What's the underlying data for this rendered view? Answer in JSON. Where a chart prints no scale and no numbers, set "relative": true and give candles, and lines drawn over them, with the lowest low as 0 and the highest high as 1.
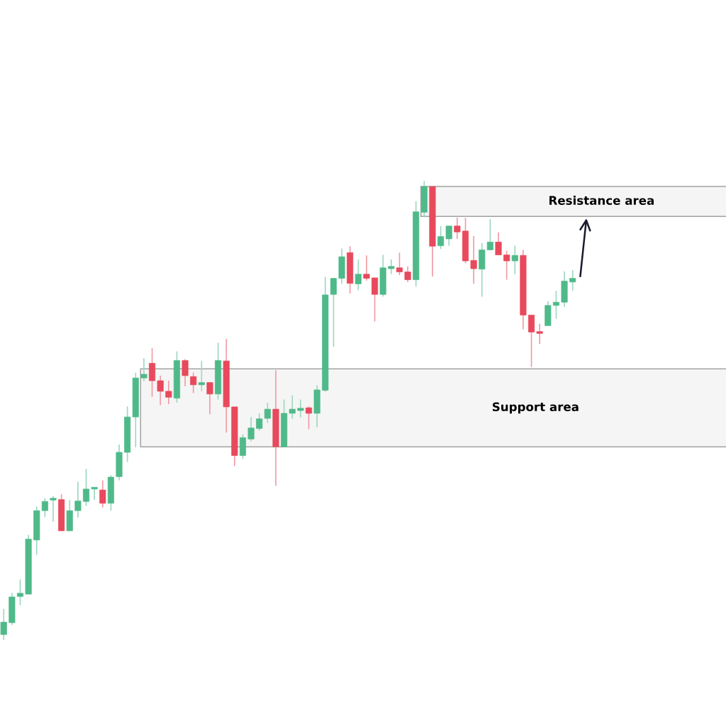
{
  "chart_data": {
    "type": "candlestick",
    "relative": true,
    "categories": [
      null,
      null,
      null,
      null,
      null,
      null,
      null,
      null,
      null,
      null,
      null,
      null,
      null,
      null,
      null,
      null,
      null,
      null,
      null,
      null,
      null,
      null,
      null,
      null,
      null,
      null,
      null,
      null,
      null,
      null,
      null,
      null,
      null,
      null,
      null,
      null,
      null,
      null,
      null,
      null,
      null,
      null,
      null,
      null,
      null,
      null,
      null,
      null,
      null,
      null,
      null,
      null,
      null,
      null,
      null,
      null,
      null,
      null,
      null,
      null,
      null,
      null,
      null,
      null,
      null,
      null,
      null,
      null,
      null,
      null
    ],
    "ohlc": [
      [
        0.012,
        0.068,
        0,
        0.039
      ],
      [
        0.038,
        0.103,
        0.033,
        0.094
      ],
      [
        0.095,
        0.132,
        0.076,
        0.102
      ],
      [
        0.1,
        0.229,
        0.1,
        0.22
      ],
      [
        0.218,
        0.291,
        0.186,
        0.282
      ],
      [
        0.282,
        0.309,
        0.268,
        0.302
      ],
      [
        0.305,
        0.314,
        0.258,
        0.306
      ],
      [
        0.306,
        0.318,
        0.238,
        0.238
      ],
      [
        0.238,
        0.305,
        0.238,
        0.282
      ],
      [
        0.282,
        0.345,
        0.267,
        0.303
      ],
      [
        0.302,
        0.373,
        0.292,
        0.329
      ],
      [
        0.329,
        0.332,
        0.305,
        0.332
      ],
      [
        0.327,
        0.348,
        0.289,
        0.298
      ],
      [
        0.298,
        0.359,
        0.282,
        0.355
      ],
      [
        0.356,
        0.426,
        0.348,
        0.409
      ],
      [
        0.409,
        0.509,
        0.388,
        0.486
      ],
      [
        0.486,
        0.582,
        0.42,
        0.571
      ],
      [
        0.571,
        0.614,
        0.564,
        0.579
      ],
      [
        0.603,
        0.636,
        0.53,
        0.565
      ],
      [
        0.565,
        0.576,
        0.512,
        0.542
      ],
      [
        0.542,
        0.565,
        0.514,
        0.529
      ],
      [
        0.527,
        0.629,
        0.517,
        0.609
      ],
      [
        0.609,
        0.612,
        0.553,
        0.576
      ],
      [
        0.574,
        0.583,
        0.538,
        0.556
      ],
      [
        0.556,
        0.608,
        0.542,
        0.561
      ],
      [
        0.561,
        0.561,
        0.492,
        0.536
      ],
      [
        0.536,
        0.648,
        0.524,
        0.609
      ],
      [
        0.608,
        0.656,
        0.452,
        0.508
      ],
      [
        0.508,
        0.508,
        0.379,
        0.402
      ],
      [
        0.402,
        0.448,
        0.395,
        0.441
      ],
      [
        0.438,
        0.486,
        0.433,
        0.462
      ],
      [
        0.461,
        0.494,
        0.456,
        0.482
      ],
      [
        0.483,
        0.517,
        0.473,
        0.503
      ],
      [
        0.503,
        0.588,
        0.336,
        0.421
      ],
      [
        0.421,
        0.524,
        0.421,
        0.494
      ],
      [
        0.494,
        0.533,
        0.482,
        0.503
      ],
      [
        0.5,
        0.524,
        0.485,
        0.505
      ],
      [
        0.506,
        0.509,
        0.459,
        0.494
      ],
      [
        0.494,
        0.555,
        0.464,
        0.545
      ],
      [
        0.544,
        0.791,
        0.541,
        0.752
      ],
      [
        0.753,
        0.789,
        0.639,
        0.788
      ],
      [
        0.788,
        0.853,
        0.776,
        0.835
      ],
      [
        0.844,
        0.858,
        0.755,
        0.777
      ],
      [
        0.776,
        0.829,
        0.762,
        0.797
      ],
      [
        0.797,
        0.838,
        0.783,
        0.788
      ],
      [
        0.789,
        0.789,
        0.694,
        0.753
      ],
      [
        0.753,
        0.839,
        0.748,
        0.811
      ],
      [
        0.809,
        0.829,
        0.797,
        0.814
      ],
      [
        0.811,
        0.844,
        0.795,
        0.802
      ],
      [
        0.802,
        0.814,
        0.78,
        0.785
      ],
      [
        0.785,
        0.956,
        0.77,
        0.933
      ],
      [
        0.932,
        1,
        0.921,
        0.988
      ],
      [
        0.988,
        0.988,
        0.792,
        0.858
      ],
      [
        0.859,
        0.902,
        0.852,
        0.879
      ],
      [
        0.874,
        0.902,
        0.859,
        0.902
      ],
      [
        0.902,
        0.92,
        0.874,
        0.889
      ],
      [
        0.891,
        0.92,
        0.821,
        0.826
      ],
      [
        0.827,
        0.88,
        0.776,
        0.809
      ],
      [
        0.808,
        0.865,
        0.748,
        0.85
      ],
      [
        0.85,
        0.917,
        0.85,
        0.867
      ],
      [
        0.867,
        0.888,
        0.839,
        0.839
      ],
      [
        0.839,
        0.848,
        0.785,
        0.826
      ],
      [
        0.826,
        0.859,
        0.797,
        0.838
      ],
      [
        0.838,
        0.85,
        0.677,
        0.708
      ],
      [
        0.708,
        0.708,
        0.595,
        0.671
      ],
      [
        0.671,
        0.689,
        0.645,
        0.668
      ],
      [
        0.685,
        0.738,
        0.685,
        0.729
      ],
      [
        0.729,
        0.761,
        0.7,
        0.736
      ],
      [
        0.736,
        0.803,
        0.726,
        0.782
      ],
      [
        0.78,
        0.806,
        0.761,
        0.788
      ]
    ],
    "colors": [
      "#4fb98a",
      "#4fb98a",
      "#4fb98a",
      "#4fb98a",
      "#4fb98a",
      "#4fb98a",
      "#4fb98a",
      "#e8495c",
      "#4fb98a",
      "#4fb98a",
      "#4fb98a",
      "#4fb98a",
      "#e8495c",
      "#4fb98a",
      "#4fb98a",
      "#4fb98a",
      "#4fb98a",
      "#4fb98a",
      "#e8495c",
      "#e8495c",
      "#e8495c",
      "#4fb98a",
      "#e8495c",
      "#e8495c",
      "#4fb98a",
      "#e8495c",
      "#4fb98a",
      "#e8495c",
      "#e8495c",
      "#4fb98a",
      "#4fb98a",
      "#4fb98a",
      "#4fb98a",
      "#e8495c",
      "#4fb98a",
      "#4fb98a",
      "#4fb98a",
      "#e8495c",
      "#4fb98a",
      "#4fb98a",
      "#4fb98a",
      "#4fb98a",
      "#e8495c",
      "#4fb98a",
      "#e8495c",
      "#e8495c",
      "#4fb98a",
      "#4fb98a",
      "#e8495c",
      "#e8495c",
      "#4fb98a",
      "#4fb98a",
      "#e8495c",
      "#4fb98a",
      "#4fb98a",
      "#e8495c",
      "#e8495c",
      "#e8495c",
      "#4fb98a",
      "#4fb98a",
      "#e8495c",
      "#e8495c",
      "#4fb98a",
      "#e8495c",
      "#e8495c",
      "#e8495c",
      "#4fb98a",
      "#4fb98a",
      "#4fb98a",
      "#4fb98a"
    ],
    "bands": [
      {
        "axis": "y",
        "from": 0.923,
        "to": 0.988,
        "label": "Resistance area",
        "color": "#999999"
      },
      {
        "axis": "y",
        "from": 0.421,
        "to": 0.591,
        "label": "Support area",
        "color": "#999999"
      }
    ],
    "legend": false,
    "grid": false
  }
}
